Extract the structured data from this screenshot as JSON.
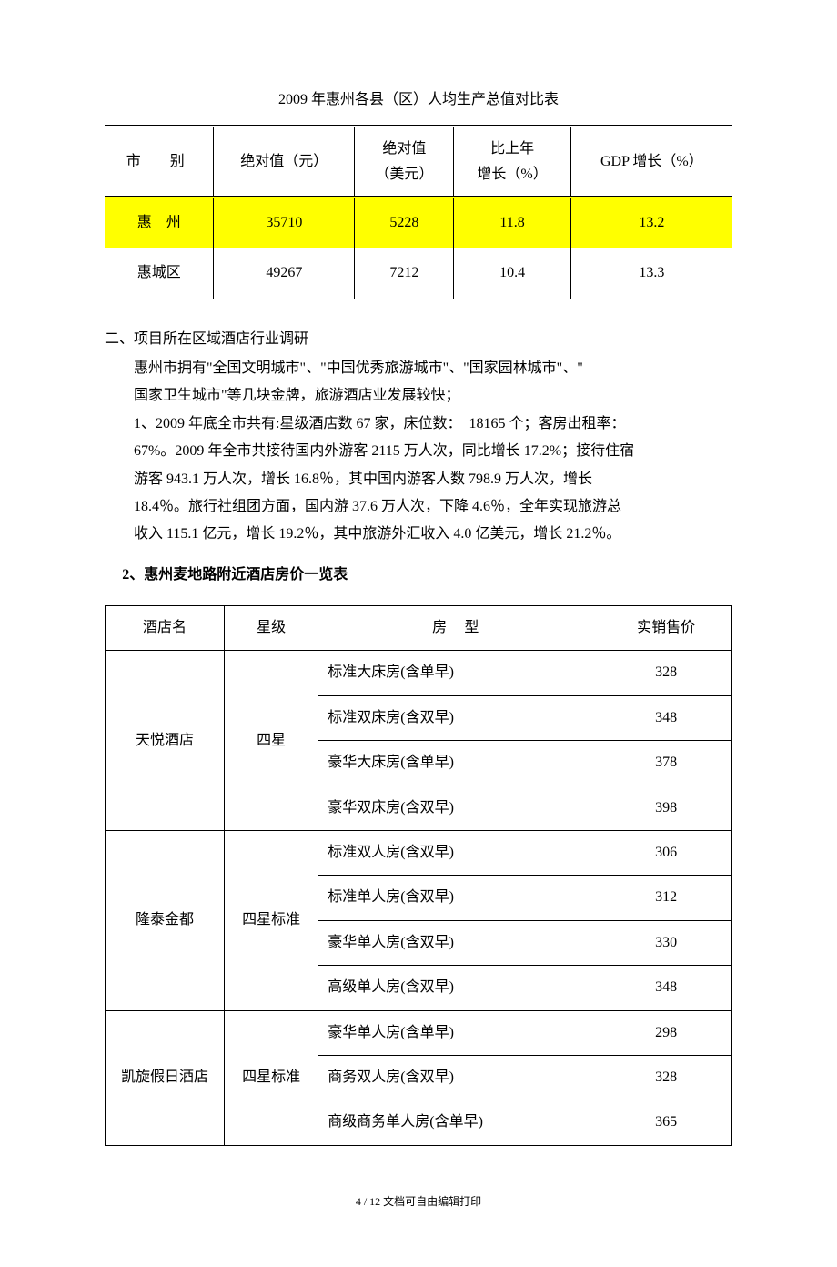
{
  "table1": {
    "title": "2009 年惠州各县（区）人均生产总值对比表",
    "headers": {
      "c0": "市　别",
      "c1": "绝对值（元）",
      "c2_l1": "绝对值",
      "c2_l2": "（美元）",
      "c3_l1": "比上年",
      "c3_l2": "增长（%）",
      "c4": "GDP 增长（%）"
    },
    "row0": {
      "c0": "惠　州",
      "c1": "35710",
      "c2": "5228",
      "c3": "11.8",
      "c4": "13.2"
    },
    "row1": {
      "c0": "惠城区",
      "c1": "49267",
      "c2": "7212",
      "c3": "10.4",
      "c4": "13.3"
    },
    "highlight_color": "#ffff00"
  },
  "section2": {
    "heading": "二、项目所在区域酒店行业调研",
    "p1": "惠州市拥有\"全国文明城市\"、\"中国优秀旅游城市\"、\"国家园林城市\"、\"",
    "p2": "国家卫生城市\"等几块金牌，旅游酒店业发展较快；",
    "p3": "1、2009 年底全市共有:星级酒店数 67 家，床位数：　18165 个；客房出租率：",
    "p4": "67%。2009 年全市共接待国内外游客 2115 万人次，同比增长 17.2%；接待住宿",
    "p5": "游客 943.1 万人次，增长 16.8％，其中国内游客人数 798.9 万人次，增长",
    "p6": "18.4％。旅行社组团方面，国内游 37.6 万人次，下降 4.6％，全年实现旅游总",
    "p7": "收入 115.1 亿元，增长 19.2％，其中旅游外汇收入 4.0 亿美元，增长 21.2％。",
    "subheading": "2、惠州麦地路附近酒店房价一览表"
  },
  "table2": {
    "headers": {
      "c0": "酒店名",
      "c1": "星级",
      "c2": "房型",
      "c3": "实销售价"
    },
    "hotels": {
      "h0": {
        "name": "天悦酒店",
        "star": "四星"
      },
      "h1": {
        "name": "隆泰金都",
        "star": "四星标准"
      },
      "h2": {
        "name": "凯旋假日酒店",
        "star": "四星标准"
      }
    },
    "rows": {
      "r0": {
        "room": "标准大床房(含单早)",
        "price": "328"
      },
      "r1": {
        "room": "标准双床房(含双早)",
        "price": "348"
      },
      "r2": {
        "room": "豪华大床房(含单早)",
        "price": "378"
      },
      "r3": {
        "room": "豪华双床房(含双早)",
        "price": "398"
      },
      "r4": {
        "room": "标准双人房(含双早)",
        "price": "306"
      },
      "r5": {
        "room": "标准单人房(含双早)",
        "price": "312"
      },
      "r6": {
        "room": "豪华单人房(含双早)",
        "price": "330"
      },
      "r7": {
        "room": "高级单人房(含双早)",
        "price": "348"
      },
      "r8": {
        "room": "豪华单人房(含单早)",
        "price": "298"
      },
      "r9": {
        "room": "商务双人房(含双早)",
        "price": "328"
      },
      "r10": {
        "room": "商级商务单人房(含单早)",
        "price": "365"
      }
    }
  },
  "footer": "4 / 12 文档可自由编辑打印"
}
